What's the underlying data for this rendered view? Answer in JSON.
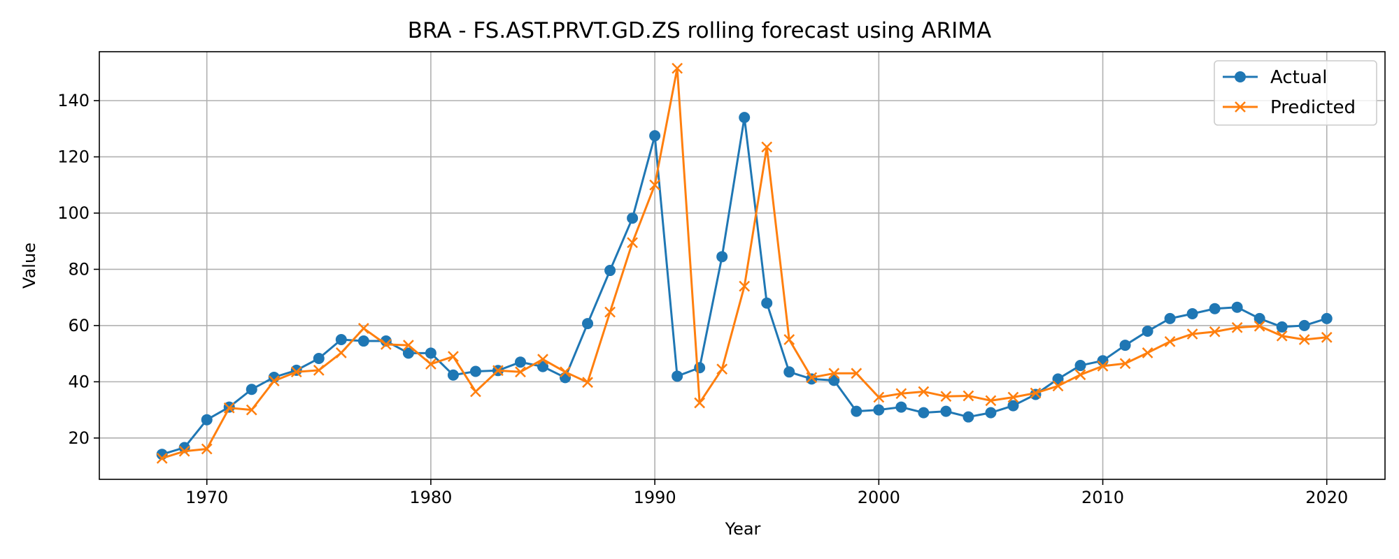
{
  "chart_data": {
    "type": "line",
    "title": "BRA - FS.AST.PRVT.GD.ZS rolling forecast using ARIMA",
    "xlabel": "Year",
    "ylabel": "Value",
    "xlim": [
      1965.2,
      2022.6
    ],
    "ylim": [
      5.3,
      157.4
    ],
    "xticks": [
      1970,
      1980,
      1990,
      2000,
      2010,
      2020
    ],
    "yticks": [
      20,
      40,
      60,
      80,
      100,
      120,
      140
    ],
    "grid": true,
    "legend_position": "top-right",
    "x": [
      1968,
      1969,
      1970,
      1971,
      1972,
      1973,
      1974,
      1975,
      1976,
      1977,
      1978,
      1979,
      1980,
      1981,
      1982,
      1983,
      1984,
      1985,
      1986,
      1987,
      1988,
      1989,
      1990,
      1991,
      1992,
      1993,
      1994,
      1995,
      1996,
      1997,
      1998,
      1999,
      2000,
      2001,
      2002,
      2003,
      2004,
      2005,
      2006,
      2007,
      2008,
      2009,
      2010,
      2011,
      2012,
      2013,
      2014,
      2015,
      2016,
      2017,
      2018,
      2019,
      2020
    ],
    "series": [
      {
        "name": "Actual",
        "color": "#1f77b4",
        "marker": "circle",
        "values": [
          14.2,
          16.6,
          26.5,
          31.0,
          37.3,
          41.6,
          44.1,
          48.3,
          55.0,
          54.5,
          54.5,
          50.2,
          50.2,
          42.4,
          43.7,
          44.0,
          47.0,
          45.4,
          41.5,
          60.7,
          79.6,
          98.2,
          127.5,
          42.0,
          45.0,
          84.5,
          134.0,
          68.0,
          43.5,
          41.0,
          40.5,
          29.5,
          30.0,
          31.0,
          29.0,
          29.5,
          27.5,
          29.0,
          31.5,
          35.5,
          41.0,
          45.8,
          47.5,
          53.0,
          58.0,
          62.5,
          64.2,
          66.0,
          66.5,
          62.5,
          59.5,
          60.0,
          62.5
        ]
      },
      {
        "name": "Predicted",
        "color": "#ff7f0e",
        "marker": "x",
        "values": [
          12.8,
          15.3,
          16.1,
          30.7,
          30.0,
          40.3,
          43.5,
          44.1,
          50.3,
          59.0,
          53.3,
          53.0,
          46.3,
          49.0,
          36.5,
          44.0,
          43.5,
          48.0,
          43.5,
          39.8,
          64.8,
          89.5,
          110.0,
          151.5,
          32.5,
          44.5,
          74.0,
          123.5,
          55.0,
          41.5,
          43.0,
          43.0,
          34.5,
          35.8,
          36.5,
          34.8,
          35.0,
          33.3,
          34.5,
          36.0,
          38.5,
          42.5,
          45.6,
          46.5,
          50.3,
          54.3,
          57.0,
          57.8,
          59.3,
          59.8,
          56.3,
          55.0,
          55.8
        ]
      }
    ]
  }
}
